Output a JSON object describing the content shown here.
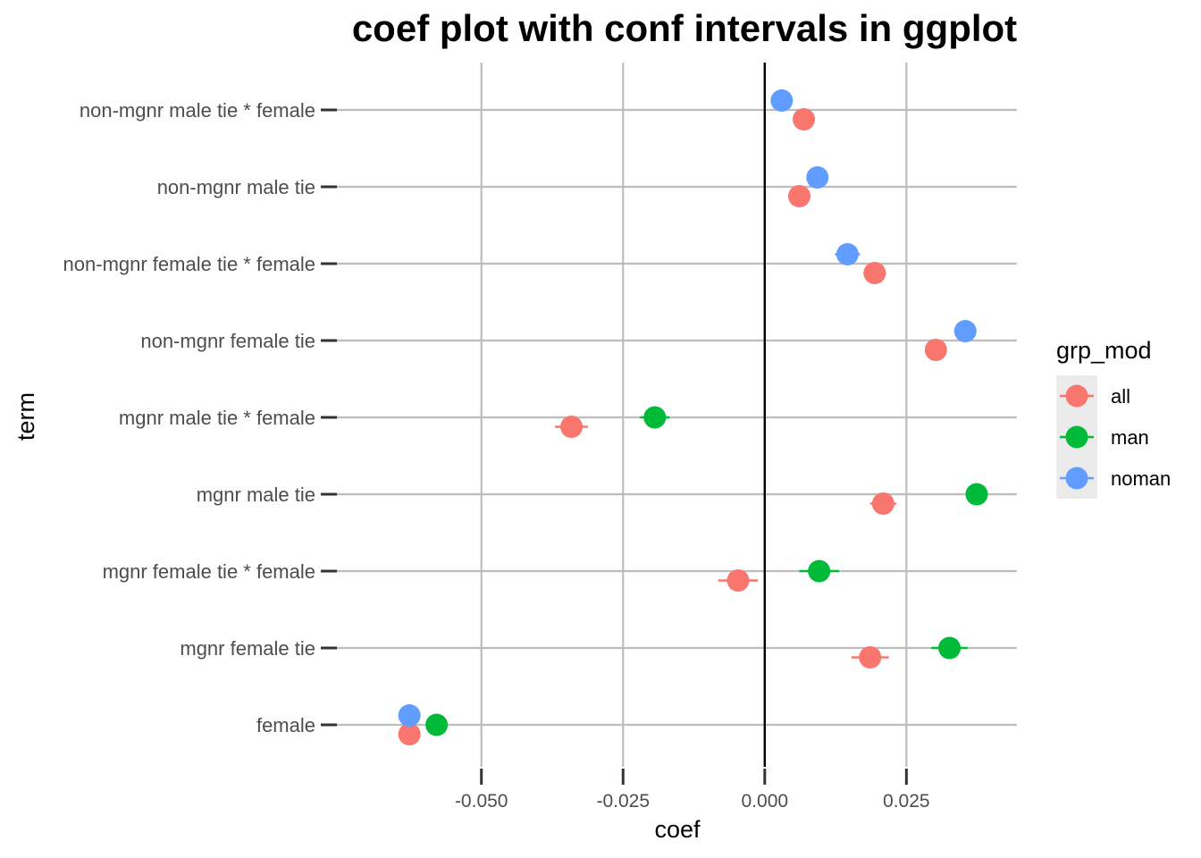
{
  "chart_data": {
    "type": "scatter",
    "title": "coef plot with conf intervals in ggplot",
    "xlabel": "coef",
    "ylabel": "term",
    "xlim": [
      -0.0755,
      0.0445
    ],
    "x_ticks": [
      -0.05,
      -0.025,
      0.0,
      0.025
    ],
    "x_tick_labels": [
      "-0.050",
      "-0.025",
      "0.000",
      "0.025"
    ],
    "reference_line_x": 0,
    "grid": true,
    "legend": {
      "title": "grp_mod",
      "position": "right",
      "entries": [
        {
          "name": "all",
          "color": "#F8766D"
        },
        {
          "name": "man",
          "color": "#00BA38"
        },
        {
          "name": "noman",
          "color": "#619CFF"
        }
      ]
    },
    "terms": [
      "female",
      "mgnr female tie",
      "mgnr female tie * female",
      "mgnr male tie",
      "mgnr male tie * female",
      "non-mgnr female tie",
      "non-mgnr female tie * female",
      "non-mgnr male tie",
      "non-mgnr male tie * female"
    ],
    "series": [
      {
        "name": "all",
        "color": "#F8766D",
        "points": [
          {
            "term": "female",
            "coef": -0.0627,
            "lo": -0.0642,
            "hi": -0.0612
          },
          {
            "term": "mgnr female tie",
            "coef": 0.0186,
            "lo": 0.0153,
            "hi": 0.0219
          },
          {
            "term": "mgnr female tie * female",
            "coef": -0.0047,
            "lo": -0.0082,
            "hi": -0.0012
          },
          {
            "term": "mgnr male tie",
            "coef": 0.0209,
            "lo": 0.0186,
            "hi": 0.0232
          },
          {
            "term": "mgnr male tie * female",
            "coef": -0.0341,
            "lo": -0.037,
            "hi": -0.0312
          },
          {
            "term": "non-mgnr female tie",
            "coef": 0.0302,
            "lo": 0.0288,
            "hi": 0.0316
          },
          {
            "term": "non-mgnr female tie * female",
            "coef": 0.0194,
            "lo": 0.0174,
            "hi": 0.0214
          },
          {
            "term": "non-mgnr male tie",
            "coef": 0.0061,
            "lo": 0.0048,
            "hi": 0.0074
          },
          {
            "term": "non-mgnr male tie * female",
            "coef": 0.0069,
            "lo": 0.005,
            "hi": 0.0088
          }
        ]
      },
      {
        "name": "man",
        "color": "#00BA38",
        "points": [
          {
            "term": "female",
            "coef": -0.0579,
            "lo": -0.0594,
            "hi": -0.0564
          },
          {
            "term": "mgnr female tie",
            "coef": 0.0326,
            "lo": 0.0294,
            "hi": 0.0358
          },
          {
            "term": "mgnr female tie * female",
            "coef": 0.0096,
            "lo": 0.0061,
            "hi": 0.0131
          },
          {
            "term": "mgnr male tie",
            "coef": 0.0374,
            "lo": 0.0356,
            "hi": 0.0392
          },
          {
            "term": "mgnr male tie * female",
            "coef": -0.0194,
            "lo": -0.022,
            "hi": -0.0168
          }
        ]
      },
      {
        "name": "noman",
        "color": "#619CFF",
        "points": [
          {
            "term": "female",
            "coef": -0.0627,
            "lo": -0.064,
            "hi": -0.0614
          },
          {
            "term": "non-mgnr female tie",
            "coef": 0.0354,
            "lo": 0.034,
            "hi": 0.0368
          },
          {
            "term": "non-mgnr female tie * female",
            "coef": 0.0146,
            "lo": 0.0124,
            "hi": 0.0168
          },
          {
            "term": "non-mgnr male tie",
            "coef": 0.0093,
            "lo": 0.008,
            "hi": 0.0106
          },
          {
            "term": "non-mgnr male tie * female",
            "coef": 0.003,
            "lo": 0.0014,
            "hi": 0.0046
          }
        ]
      }
    ]
  }
}
